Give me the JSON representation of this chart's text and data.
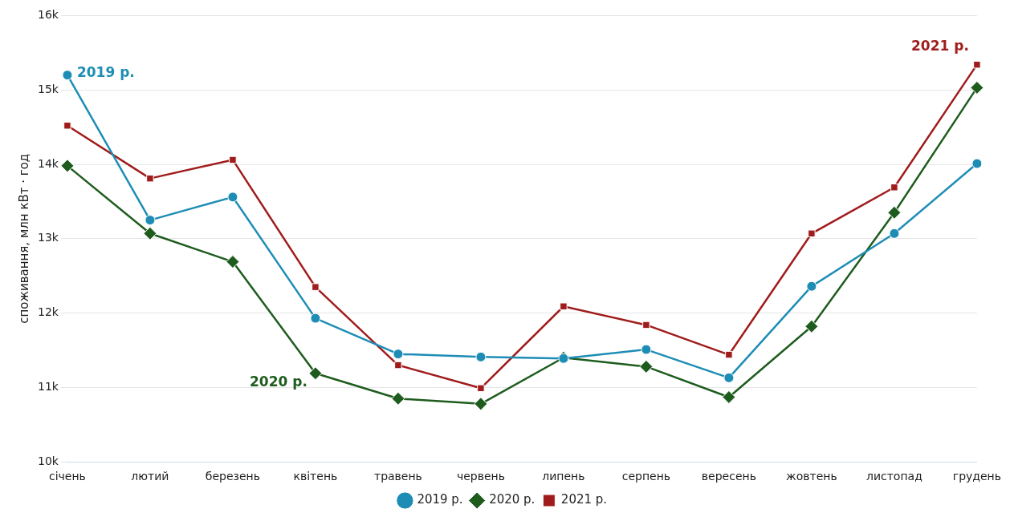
{
  "chart_data": {
    "type": "line",
    "ylabel": "споживання, млн кВт · год",
    "categories": [
      "січень",
      "лютий",
      "березень",
      "квітень",
      "травень",
      "червень",
      "липень",
      "серпень",
      "вересень",
      "жовтень",
      "листопад",
      "грудень"
    ],
    "series": [
      {
        "name": "2019 р.",
        "color": "#1e8db5",
        "marker": "circle",
        "values": [
          15.2,
          13.25,
          13.56,
          11.93,
          11.45,
          11.41,
          11.39,
          11.51,
          11.13,
          12.36,
          13.07,
          14.01
        ]
      },
      {
        "name": "2020 р.",
        "color": "#1e5c1e",
        "marker": "diamond",
        "values": [
          13.98,
          13.07,
          12.69,
          11.19,
          10.85,
          10.78,
          11.4,
          11.28,
          10.87,
          11.82,
          13.35,
          15.03
        ]
      },
      {
        "name": "2021 р.",
        "color": "#a01c1c",
        "marker": "square",
        "values": [
          14.52,
          13.81,
          14.06,
          12.35,
          11.3,
          10.99,
          12.09,
          11.84,
          11.44,
          13.07,
          13.69,
          15.34
        ]
      }
    ],
    "ylim": [
      10,
      16
    ],
    "yticks": [
      {
        "value": 10,
        "label": "10k"
      },
      {
        "value": 11,
        "label": "11k"
      },
      {
        "value": 12,
        "label": "12k"
      },
      {
        "value": 13,
        "label": "13k"
      },
      {
        "value": 14,
        "label": "14k"
      },
      {
        "value": 15,
        "label": "15k"
      },
      {
        "value": 16,
        "label": "16k"
      }
    ],
    "grid": "y",
    "legend": "bottom",
    "line_style": "solid",
    "annotations": [
      {
        "text": "2019 р.",
        "x": "січень",
        "y": 15.2
      },
      {
        "text": "2020 р.",
        "x": "квітень",
        "y": 11.19
      },
      {
        "text": "2021 р.",
        "x": "грудень",
        "y": 15.34
      }
    ]
  }
}
